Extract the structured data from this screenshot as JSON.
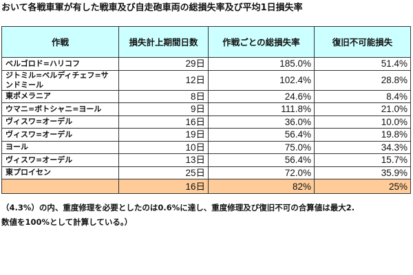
{
  "title": "おいて各戦車軍が有した戦車及び自走砲車両の総損失率及び平均1日損失率",
  "table": {
    "headers": [
      "作戦",
      "損失計上期間日数",
      "作戦ごとの総損失率",
      "復旧不可能損失"
    ],
    "rows": [
      [
        "ベルゴロド=ハリコフ",
        "29日",
        "185.0%",
        "51.4%"
      ],
      [
        "ジトミル=ベルディチェフ=サンドミール",
        "12日",
        "102.4%",
        "28.8%"
      ],
      [
        "東ポメラニア",
        "8日",
        "24.6%",
        "8.4%"
      ],
      [
        "ウマニ=ボトシャニ=ヨール",
        "9日",
        "111.8%",
        "21.0%"
      ],
      [
        "ヴィスワ=オーデル",
        "16日",
        "36.0%",
        "10.0%"
      ],
      [
        "ヴィスワ=オーデル",
        "19日",
        "56.4%",
        "19.8%"
      ],
      [
        "ヨール",
        "10日",
        "75.0%",
        "34.3%"
      ],
      [
        "ヴィスワ=オーデル",
        "13日",
        "56.4%",
        "15.7%"
      ],
      [
        "東プロイセン",
        "25日",
        "72.0%",
        "35.9%"
      ]
    ],
    "total": [
      "",
      "16日",
      "82%",
      "25%"
    ]
  },
  "footnote": {
    "line1": "（4.3%）の内、重度修理を必要としたのは0.6%に達し、重度修理及び復旧不可の合算値は最大2.",
    "line2": "数値を100%として計算している。）"
  },
  "colors": {
    "header_bg": "#ccffff",
    "total_bg": "#ffcc99",
    "border": "#333333"
  }
}
